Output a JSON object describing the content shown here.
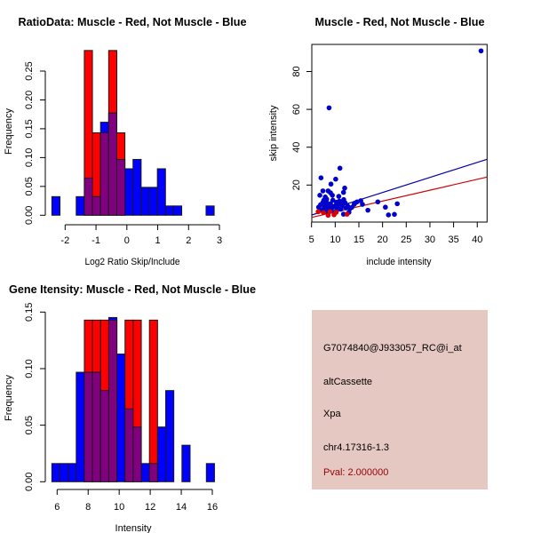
{
  "colors": {
    "muscle": "#ff0000",
    "not_muscle": "#0000ff",
    "overlap": "#800080",
    "info_background": "#e6c8c2",
    "pval_text": "#990000",
    "muscle_fit": "#cc0000",
    "not_muscle_fit": "#0000aa"
  },
  "chart_data": [
    {
      "id": "ratio_hist",
      "type": "bar",
      "subtype": "overlaid-histogram",
      "title": "RatioData: Muscle - Red, Not Muscle - Blue",
      "xlabel": "Log2 Ratio Skip/Include",
      "ylabel": "Frequency",
      "xticks": [
        -2,
        -1,
        0,
        1,
        2,
        3
      ],
      "xtick_labels": [
        "-2",
        "-1",
        "0",
        "1",
        "2",
        "3"
      ],
      "yticks": [
        0,
        0.05,
        0.1,
        0.15,
        0.2,
        0.25
      ],
      "ytick_labels": [
        "0.00",
        "0.05",
        "0.10",
        "0.15",
        "0.20",
        "0.25"
      ],
      "ylim": [
        0,
        0.2857
      ],
      "bin_start": -2.43,
      "bin_width": 0.263,
      "series": [
        {
          "name": "Muscle",
          "color": "red",
          "values": [
            0,
            0,
            0,
            0,
            0.2857,
            0.1429,
            0.1429,
            0.2857,
            0.1429,
            0,
            0,
            0,
            0,
            0,
            0,
            0,
            0,
            0,
            0,
            0
          ]
        },
        {
          "name": "Not Muscle",
          "color": "blue",
          "values": [
            0.0323,
            0,
            0,
            0.0323,
            0.0645,
            0.0323,
            0.1613,
            0.1774,
            0.0968,
            0.0806,
            0.0968,
            0.0484,
            0.0484,
            0.0806,
            0.0161,
            0.0161,
            0,
            0,
            0,
            0.0161
          ]
        }
      ]
    },
    {
      "id": "scatter",
      "type": "scatter",
      "title": "Muscle - Red, Not Muscle - Blue",
      "xlabel": "include intensity",
      "ylabel": "skip intensity",
      "xticks": [
        5,
        10,
        15,
        20,
        25,
        30,
        35,
        40
      ],
      "xtick_labels": [
        "5",
        "10",
        "15",
        "20",
        "25",
        "30",
        "35",
        "40"
      ],
      "yticks": [
        20,
        40,
        60,
        80
      ],
      "ytick_labels": [
        "20",
        "40",
        "60",
        "80"
      ],
      "xlim": [
        5.06,
        42.07
      ],
      "ylim": [
        0.4,
        94.3
      ],
      "series": [
        {
          "name": "Not Muscle",
          "color": "blue",
          "points": [
            [
              40.8,
              90.9
            ],
            [
              8.7,
              60.8
            ],
            [
              11.0,
              28.9
            ],
            [
              7.0,
              23.8
            ],
            [
              10.1,
              23.1
            ],
            [
              9.1,
              20.5
            ],
            [
              12.0,
              18.4
            ],
            [
              7.4,
              16.9
            ],
            [
              8.5,
              16.9
            ],
            [
              9.0,
              15.9
            ],
            [
              11.75,
              16.1
            ],
            [
              9.4,
              14.6
            ],
            [
              6.75,
              14.6
            ],
            [
              10.75,
              14.0
            ],
            [
              7.9,
              13.7
            ],
            [
              8.2,
              12.5
            ],
            [
              10.25,
              10.9
            ],
            [
              10.9,
              11.5
            ],
            [
              11.25,
              10.3
            ],
            [
              12.1,
              10.6
            ],
            [
              10.0,
              9.0
            ],
            [
              11.5,
              8.7
            ],
            [
              12.6,
              9.0
            ],
            [
              10.5,
              7.8
            ],
            [
              13.1,
              7.5
            ],
            [
              12.9,
              5.6
            ],
            [
              11.75,
              4.6
            ],
            [
              14.0,
              9.8
            ],
            [
              14.6,
              11.1
            ],
            [
              15.4,
              11.7
            ],
            [
              15.75,
              9.8
            ],
            [
              16.9,
              6.7
            ],
            [
              19.0,
              11.1
            ],
            [
              20.6,
              8.3
            ],
            [
              21.25,
              4.2
            ],
            [
              22.5,
              4.5
            ],
            [
              23.1,
              10.1
            ],
            [
              6.5,
              8.3
            ],
            [
              7.4,
              10.8
            ],
            [
              7.7,
              8.9
            ],
            [
              8.0,
              7.5
            ],
            [
              8.4,
              9.5
            ],
            [
              8.8,
              8.0
            ],
            [
              7.2,
              7.0
            ],
            [
              9.2,
              7.2
            ],
            [
              8.6,
              6.5
            ],
            [
              7.8,
              6.2
            ],
            [
              9.6,
              8.6
            ],
            [
              10.3,
              6.8
            ],
            [
              9.0,
              10.2
            ],
            [
              8.1,
              11.0
            ],
            [
              7.6,
              12.0
            ],
            [
              10.6,
              9.8
            ],
            [
              11.2,
              7.2
            ],
            [
              9.8,
              5.4
            ],
            [
              8.3,
              5.8
            ],
            [
              13.5,
              8.2
            ],
            [
              14.2,
              10.5
            ],
            [
              12.3,
              7.9
            ],
            [
              6.9,
              9.6
            ],
            [
              9.5,
              12.0
            ],
            [
              11.8,
              12.3
            ]
          ]
        },
        {
          "name": "Muscle",
          "color": "red",
          "points": [
            [
              6.4,
              5.9
            ],
            [
              8.5,
              4.0
            ],
            [
              9.75,
              4.3
            ],
            [
              12.5,
              4.6
            ],
            [
              7.5,
              5.4
            ],
            [
              10.2,
              5.6
            ],
            [
              8.9,
              6.0
            ]
          ]
        }
      ],
      "fit_lines": [
        {
          "name": "Not Muscle fit",
          "color": "blue",
          "intercept": 0.16,
          "slope": 0.795
        },
        {
          "name": "Muscle fit",
          "color": "red",
          "intercept": 0.0,
          "slope": 0.576
        }
      ]
    },
    {
      "id": "intensity_hist",
      "type": "bar",
      "subtype": "overlaid-histogram",
      "title": "Gene Itensity: Muscle - Red, Not Muscle - Blue",
      "xlabel": "Intensity",
      "ylabel": "Frequency",
      "xticks": [
        6,
        8,
        10,
        12,
        14,
        16
      ],
      "xtick_labels": [
        "6",
        "8",
        "10",
        "12",
        "14",
        "16"
      ],
      "yticks": [
        0,
        0.05,
        0.1,
        0.15
      ],
      "ytick_labels": [
        "0.00",
        "0.05",
        "0.10",
        "0.15"
      ],
      "ylim": [
        0,
        0.1452
      ],
      "bin_start": 5.66,
      "bin_width": 0.524,
      "series": [
        {
          "name": "Muscle",
          "color": "red",
          "values": [
            0,
            0,
            0,
            0,
            0.1429,
            0.1429,
            0.1429,
            0.1429,
            0,
            0.1429,
            0.1429,
            0,
            0.1429,
            0,
            0,
            0,
            0,
            0,
            0,
            0
          ]
        },
        {
          "name": "Not Muscle",
          "color": "blue",
          "values": [
            0.0161,
            0.0161,
            0.0161,
            0.0968,
            0.0968,
            0.0968,
            0.0806,
            0.1452,
            0.1129,
            0.0645,
            0.0484,
            0.0161,
            0.0161,
            0.0484,
            0.0806,
            0,
            0.0323,
            0,
            0,
            0.0161
          ]
        }
      ]
    }
  ],
  "info_panel": {
    "probe_id": "G7074840@J933057_RC@i_at",
    "event_type": "altCassette",
    "gene": "Xpa",
    "location": "chr4.17316-1.3",
    "pval": "Pval: 2.000000"
  }
}
